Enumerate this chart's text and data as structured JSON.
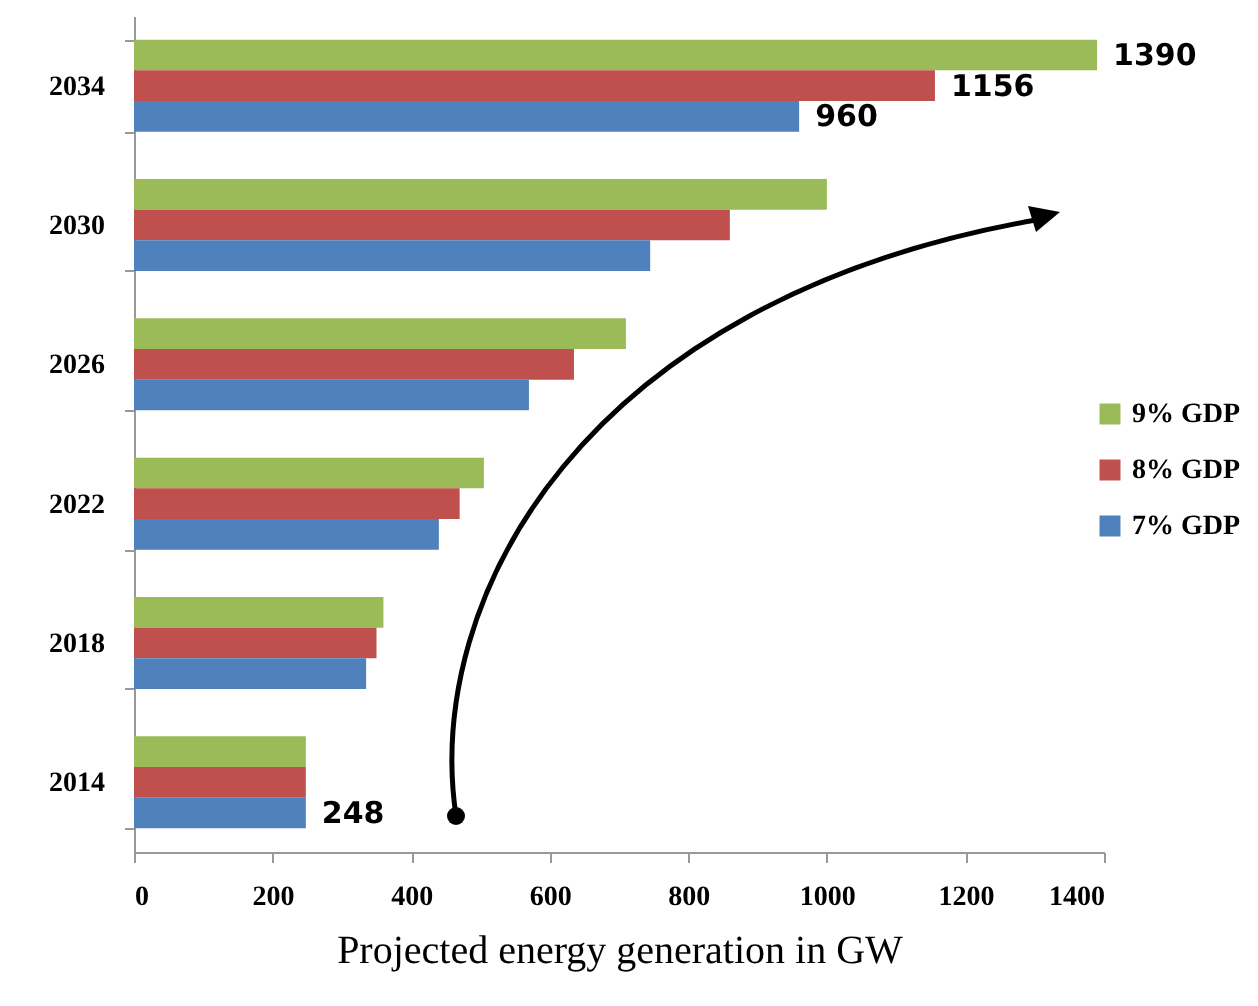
{
  "chart_data": {
    "type": "bar",
    "orientation": "horizontal",
    "xlabel": "Projected energy generation in GW",
    "categories": [
      "2034",
      "2030",
      "2026",
      "2022",
      "2018",
      "2014"
    ],
    "series": [
      {
        "name": "9% GDP",
        "color": "#9bbb59",
        "values": [
          1390,
          1000,
          710,
          505,
          360,
          248
        ],
        "value_labels": [
          "1390",
          null,
          null,
          null,
          null,
          null
        ]
      },
      {
        "name": "8% GDP",
        "color": "#c0504d",
        "values": [
          1156,
          860,
          635,
          470,
          350,
          248
        ],
        "value_labels": [
          "1156",
          null,
          null,
          null,
          null,
          null
        ]
      },
      {
        "name": "7% GDP",
        "color": "#4f81bd",
        "values": [
          960,
          745,
          570,
          440,
          335,
          248
        ],
        "value_labels": [
          "960",
          null,
          null,
          null,
          null,
          "248"
        ]
      }
    ],
    "xlim": [
      0,
      1400
    ],
    "xticks": [
      0,
      200,
      400,
      600,
      800,
      1000,
      1200,
      1400
    ],
    "grid": false,
    "legend": "right"
  }
}
